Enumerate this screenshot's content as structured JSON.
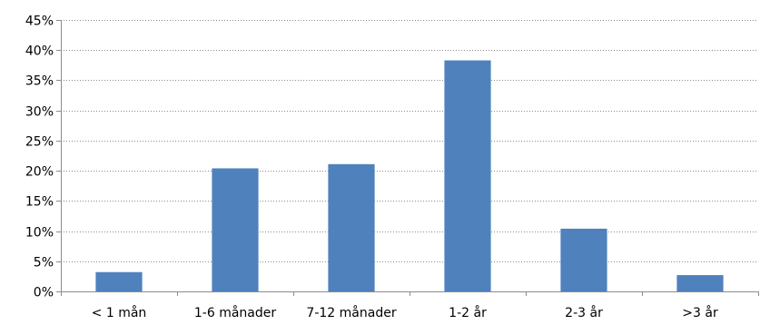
{
  "chart_data": {
    "type": "bar",
    "title": "",
    "xlabel": "",
    "ylabel": "",
    "categories": [
      "< 1 mån",
      "1-6 månader",
      "7-12 månader",
      "1-2 år",
      "2-3 år",
      ">3 år"
    ],
    "values": [
      3.2,
      20.4,
      21.1,
      38.3,
      10.4,
      2.7
    ],
    "value_unit": "%",
    "ylim": [
      0,
      45
    ],
    "yticks": [
      0,
      5,
      10,
      15,
      20,
      25,
      30,
      35,
      40,
      45
    ],
    "ytick_labels": [
      "0%",
      "5%",
      "10%",
      "15%",
      "20%",
      "25%",
      "30%",
      "35%",
      "40%",
      "45%"
    ],
    "grid": true,
    "legend": "none",
    "colors": {
      "bar": "#4f81bd",
      "grid": "#8c8c8c",
      "axis": "#8c8c8c",
      "text": "#000000"
    }
  }
}
